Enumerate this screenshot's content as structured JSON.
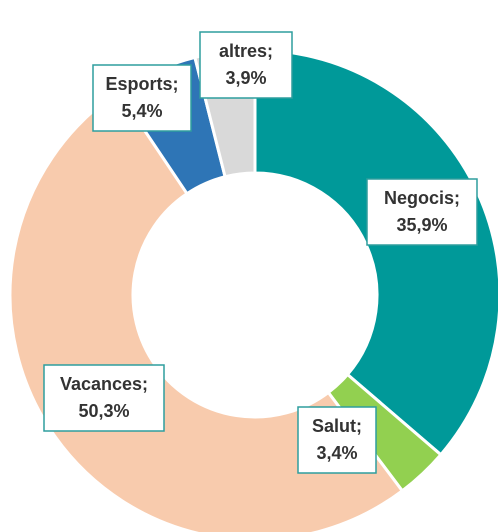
{
  "chart_data": {
    "type": "donut",
    "categories": [
      "Negocis;",
      "Salut;",
      "Vacances;",
      "Esports;",
      "altres;"
    ],
    "values": [
      35.9,
      3.4,
      50.3,
      5.4,
      3.9
    ],
    "value_labels": [
      "35,9%",
      "3,4%",
      "50,3%",
      "5,4%",
      "3,9%"
    ],
    "colors": [
      "#009999",
      "#92d050",
      "#f8cbad",
      "#2e75b6",
      "#d9d9d9"
    ]
  }
}
